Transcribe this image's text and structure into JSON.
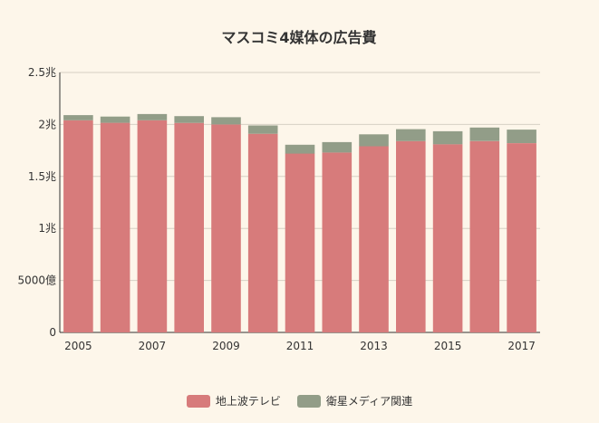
{
  "chart_data": {
    "type": "bar",
    "stacked": true,
    "title": "マスコミ4媒体の広告費",
    "xlabel": "",
    "ylabel": "",
    "categories": [
      "2005",
      "2006",
      "2007",
      "2008",
      "2009",
      "2010",
      "2011",
      "2012",
      "2013",
      "2014",
      "2015",
      "2016",
      "2017"
    ],
    "x_tick_labels": [
      "2005",
      "",
      "2007",
      "",
      "2009",
      "",
      "2011",
      "",
      "2013",
      "",
      "2015",
      "",
      "2017"
    ],
    "y_ticks": [
      {
        "value": 0,
        "label": "0"
      },
      {
        "value": 5000,
        "label": "5000億"
      },
      {
        "value": 10000,
        "label": "1兆"
      },
      {
        "value": 15000,
        "label": "1.5兆"
      },
      {
        "value": 20000,
        "label": "2兆"
      },
      {
        "value": 25000,
        "label": "2.5兆"
      }
    ],
    "ylim": [
      0,
      25000
    ],
    "grid": true,
    "legend_position": "bottom",
    "series": [
      {
        "name": "地上波テレビ",
        "color": "#d77b7b",
        "values": [
          20400,
          20160,
          20400,
          20150,
          20000,
          19100,
          17200,
          17300,
          17900,
          18400,
          18100,
          18400,
          18200
        ]
      },
      {
        "name": "衛星メディア関連",
        "color": "#929d88",
        "values": [
          500,
          600,
          600,
          650,
          700,
          800,
          850,
          1000,
          1150,
          1150,
          1250,
          1300,
          1300
        ]
      }
    ]
  }
}
